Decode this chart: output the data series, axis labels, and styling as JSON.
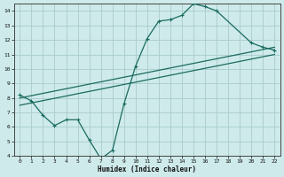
{
  "title": "",
  "xlabel": "Humidex (Indice chaleur)",
  "ylabel": "",
  "bg_color": "#ceeaea",
  "grid_color": "#aacccc",
  "line_color": "#1a6b60",
  "xlim": [
    -0.5,
    22.5
  ],
  "ylim": [
    4,
    14.5
  ],
  "xticks": [
    0,
    1,
    2,
    3,
    4,
    5,
    6,
    7,
    8,
    9,
    10,
    11,
    12,
    13,
    14,
    15,
    16,
    17,
    18,
    19,
    20,
    21,
    22
  ],
  "yticks": [
    4,
    5,
    6,
    7,
    8,
    9,
    10,
    11,
    12,
    13,
    14
  ],
  "curve1_x": [
    0,
    1,
    2,
    3,
    4,
    5,
    6,
    7,
    8,
    9,
    10,
    11,
    12,
    13,
    14,
    15,
    16,
    17,
    20,
    21,
    22
  ],
  "curve1_y": [
    8.2,
    7.8,
    6.8,
    6.1,
    6.5,
    6.5,
    5.1,
    3.8,
    4.4,
    7.6,
    10.2,
    12.1,
    13.3,
    13.4,
    13.7,
    14.5,
    14.3,
    14.0,
    11.8,
    11.5,
    11.3
  ],
  "curve2_x": [
    0,
    22
  ],
  "curve2_y": [
    8.0,
    11.5
  ],
  "curve3_x": [
    0,
    22
  ],
  "curve3_y": [
    7.5,
    11.0
  ]
}
